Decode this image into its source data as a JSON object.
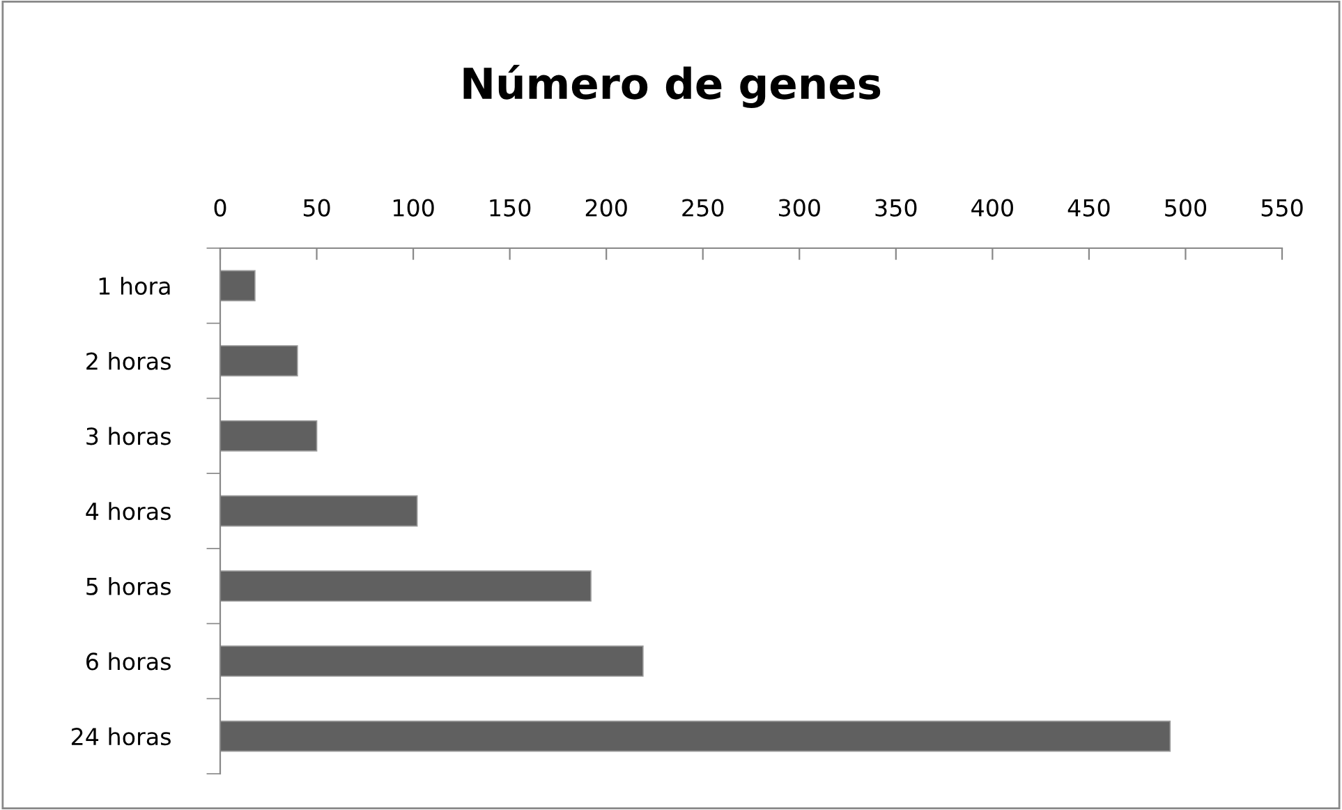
{
  "chart_data": {
    "type": "bar",
    "orientation": "horizontal",
    "title": "Número de genes",
    "categories": [
      "1 hora",
      "2 horas",
      "3 horas",
      "4 horas",
      "5 horas",
      "6 horas",
      "24 horas"
    ],
    "values": [
      18,
      40,
      50,
      102,
      192,
      219,
      492
    ],
    "color": "#606060",
    "xlim": [
      0,
      550
    ],
    "xticks": [
      0,
      50,
      100,
      150,
      200,
      250,
      300,
      350,
      400,
      450,
      500,
      550
    ],
    "grid": false,
    "legend": false
  }
}
